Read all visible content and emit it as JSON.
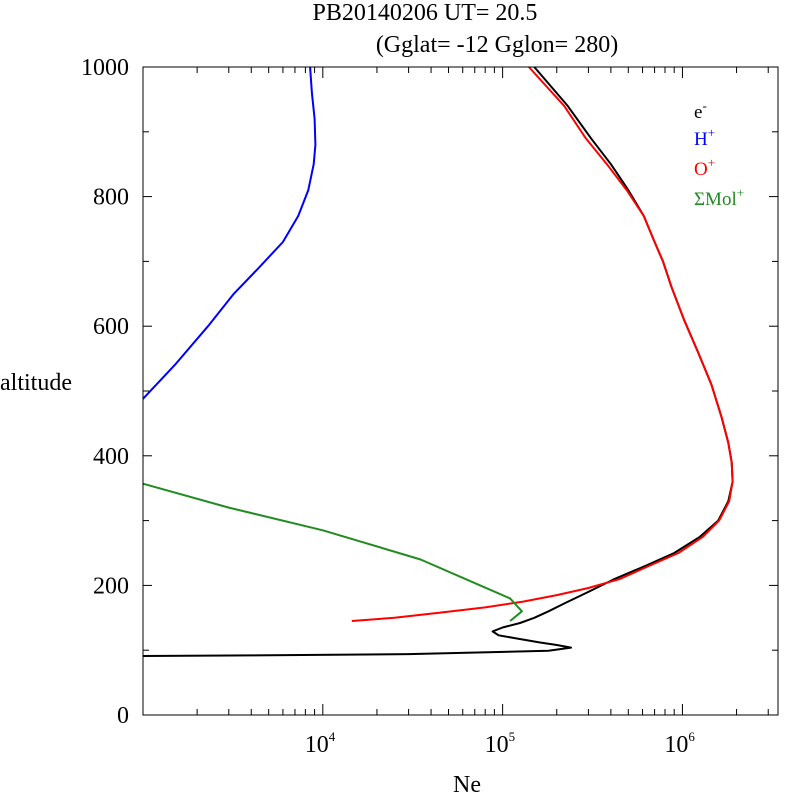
{
  "title": {
    "line1": "PB20140206   UT=  20.5",
    "line2": "(Gglat= -12   Gglon=  280)"
  },
  "chart_data": {
    "type": "line",
    "xlabel": "Ne",
    "ylabel": "altitude",
    "xscale": "log",
    "xlim": [
      1000,
      3400000
    ],
    "ylim": [
      0,
      1000
    ],
    "x_tick_labels": [
      {
        "base": "10",
        "exp": "4",
        "value": 10000
      },
      {
        "base": "10",
        "exp": "5",
        "value": 100000
      },
      {
        "base": "10",
        "exp": "6",
        "value": 1000000
      }
    ],
    "y_tick_labels": [
      {
        "text": "0",
        "value": 0
      },
      {
        "text": "200",
        "value": 200
      },
      {
        "text": "400",
        "value": 400
      },
      {
        "text": "600",
        "value": 600
      },
      {
        "text": "800",
        "value": 800
      },
      {
        "text": "1000",
        "value": 1000
      }
    ],
    "grid": false,
    "legend_position": "top-right",
    "series": [
      {
        "name": "e",
        "sup": "-",
        "color": "#000000",
        "points": [
          [
            1000,
            91
          ],
          [
            4000,
            92
          ],
          [
            30000,
            94
          ],
          [
            180000,
            99
          ],
          [
            240000,
            104
          ],
          [
            200000,
            108
          ],
          [
            160000,
            112
          ],
          [
            120000,
            118
          ],
          [
            95000,
            123
          ],
          [
            88000,
            129
          ],
          [
            100000,
            135
          ],
          [
            125000,
            142
          ],
          [
            150000,
            150
          ],
          [
            180000,
            160
          ],
          [
            220000,
            172
          ],
          [
            300000,
            190
          ],
          [
            420000,
            210
          ],
          [
            620000,
            230
          ],
          [
            900000,
            250
          ],
          [
            1250000,
            275
          ],
          [
            1580000,
            300
          ],
          [
            1800000,
            330
          ],
          [
            1900000,
            360
          ],
          [
            1880000,
            390
          ],
          [
            1800000,
            420
          ],
          [
            1650000,
            460
          ],
          [
            1450000,
            510
          ],
          [
            1220000,
            560
          ],
          [
            1020000,
            610
          ],
          [
            870000,
            660
          ],
          [
            780000,
            700
          ],
          [
            700000,
            730
          ],
          [
            610000,
            770
          ],
          [
            500000,
            810
          ],
          [
            400000,
            850
          ],
          [
            310000,
            890
          ],
          [
            230000,
            940
          ],
          [
            150000,
            1000
          ]
        ]
      },
      {
        "name": "H",
        "sup": "+",
        "color": "#0000ff",
        "points": [
          [
            1000,
            488
          ],
          [
            1500,
            540
          ],
          [
            2300,
            600
          ],
          [
            3200,
            650
          ],
          [
            4400,
            690
          ],
          [
            6000,
            730
          ],
          [
            7300,
            770
          ],
          [
            8300,
            810
          ],
          [
            8900,
            850
          ],
          [
            9100,
            880
          ],
          [
            9000,
            920
          ],
          [
            8700,
            960
          ],
          [
            8500,
            1000
          ]
        ]
      },
      {
        "name": "O",
        "sup": "+",
        "color": "#ff0000",
        "points": [
          [
            14500,
            145
          ],
          [
            25000,
            150
          ],
          [
            45000,
            158
          ],
          [
            80000,
            166
          ],
          [
            130000,
            175
          ],
          [
            200000,
            185
          ],
          [
            300000,
            196
          ],
          [
            450000,
            210
          ],
          [
            650000,
            230
          ],
          [
            950000,
            250
          ],
          [
            1300000,
            275
          ],
          [
            1600000,
            300
          ],
          [
            1820000,
            330
          ],
          [
            1900000,
            360
          ],
          [
            1880000,
            390
          ],
          [
            1800000,
            420
          ],
          [
            1650000,
            460
          ],
          [
            1450000,
            510
          ],
          [
            1220000,
            560
          ],
          [
            1020000,
            610
          ],
          [
            870000,
            660
          ],
          [
            780000,
            700
          ],
          [
            700000,
            730
          ],
          [
            610000,
            770
          ],
          [
            490000,
            810
          ],
          [
            380000,
            850
          ],
          [
            290000,
            890
          ],
          [
            220000,
            940
          ],
          [
            140000,
            1000
          ]
        ]
      },
      {
        "name": "ΣMol",
        "sup": "+",
        "color": "#228b22",
        "points": [
          [
            1000,
            357
          ],
          [
            3000,
            320
          ],
          [
            10000,
            285
          ],
          [
            35000,
            240
          ],
          [
            75000,
            200
          ],
          [
            110000,
            180
          ],
          [
            128000,
            160
          ],
          [
            110000,
            145
          ]
        ]
      }
    ]
  }
}
